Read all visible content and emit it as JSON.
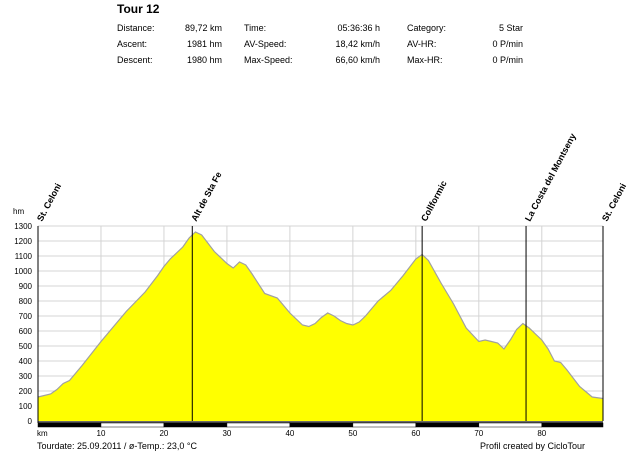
{
  "title": "Tour 12",
  "stats": [
    {
      "label": "Distance:",
      "value": "89,72 km"
    },
    {
      "label": "Ascent:",
      "value": "1981 hm"
    },
    {
      "label": "Descent:",
      "value": "1980 hm"
    },
    {
      "label": "Time:",
      "value": "05:36:36 h"
    },
    {
      "label": "AV-Speed:",
      "value": "18,42 km/h"
    },
    {
      "label": "Max-Speed:",
      "value": "66,60 km/h"
    },
    {
      "label": "Category:",
      "value": "5 Star"
    },
    {
      "label": "AV-HR:",
      "value": "0 P/min"
    },
    {
      "label": "Max-HR:",
      "value": "0 P/min"
    }
  ],
  "footer": {
    "left": "Tourdate: 25.09.2011  /  ø-Temp.: 23,0 °C",
    "right": "Profil created by CicloTour"
  },
  "colors": {
    "fill": "#ffff00",
    "outline": "#a0a0a0",
    "grid": "#d4d4d4"
  },
  "chart_data": {
    "type": "area",
    "title": "Tour 12",
    "xlabel": "km",
    "ylabel": "hm",
    "xlim": [
      0,
      89.72
    ],
    "ylim": [
      0,
      1300
    ],
    "x_ticks": [
      10,
      20,
      30,
      40,
      50,
      60,
      70,
      80
    ],
    "y_ticks": [
      0,
      100,
      200,
      300,
      400,
      500,
      600,
      700,
      800,
      900,
      1000,
      1100,
      1200,
      1300
    ],
    "grid": true,
    "x": [
      0,
      2,
      3,
      4,
      5,
      7,
      10,
      14,
      17,
      19,
      20,
      21,
      22,
      23,
      24,
      25,
      26,
      28,
      30,
      31,
      32,
      33,
      34,
      36,
      38,
      40,
      42,
      43,
      44,
      45,
      46,
      47,
      48,
      49,
      50,
      51,
      52,
      54,
      56,
      58,
      60,
      61,
      62,
      64,
      66,
      68,
      70,
      71,
      72,
      73,
      74,
      75,
      76,
      77,
      78,
      79,
      80,
      81,
      82,
      83,
      84,
      86,
      88,
      89.72
    ],
    "values": [
      160,
      180,
      210,
      250,
      270,
      370,
      530,
      730,
      860,
      970,
      1030,
      1080,
      1120,
      1160,
      1220,
      1260,
      1240,
      1130,
      1050,
      1020,
      1060,
      1040,
      980,
      850,
      820,
      720,
      640,
      630,
      650,
      690,
      720,
      700,
      670,
      650,
      640,
      660,
      700,
      800,
      870,
      970,
      1080,
      1110,
      1070,
      920,
      780,
      620,
      530,
      540,
      530,
      520,
      480,
      540,
      610,
      650,
      620,
      580,
      540,
      480,
      400,
      390,
      340,
      230,
      160,
      150
    ],
    "waypoints": [
      {
        "km": 0,
        "name": "St. Celoni"
      },
      {
        "km": 24.5,
        "name": "Alt de Sta Fe"
      },
      {
        "km": 61,
        "name": "Collformic"
      },
      {
        "km": 77.5,
        "name": "La Costa del Montseny"
      },
      {
        "km": 89.72,
        "name": "St. Celoni"
      }
    ]
  }
}
